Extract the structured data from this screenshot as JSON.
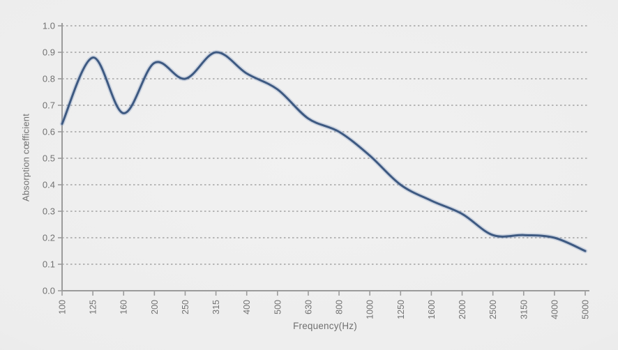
{
  "figure": {
    "background_center": "#f1f1f1",
    "background_edge": "#d4d4d4"
  },
  "chart_data": {
    "type": "line",
    "title": "",
    "xlabel": "Frequency(Hz)",
    "ylabel": "Absorption cœfficient",
    "x_scale": "categorical-third-octave-bands",
    "categories": [
      "100",
      "125",
      "160",
      "200",
      "250",
      "315",
      "400",
      "500",
      "630",
      "800",
      "1000",
      "1250",
      "1600",
      "2000",
      "2500",
      "3150",
      "4000",
      "5000"
    ],
    "series": [
      {
        "name": "absorption-coefficient",
        "values": [
          0.63,
          0.88,
          0.67,
          0.86,
          0.8,
          0.9,
          0.82,
          0.76,
          0.65,
          0.6,
          0.51,
          0.4,
          0.34,
          0.29,
          0.21,
          0.21,
          0.2,
          0.15
        ],
        "color": "#3e5a82",
        "halo_color": "rgba(125,150,190,0.30)",
        "line_width": 3
      }
    ],
    "ylim": [
      0.0,
      1.0
    ],
    "yticks": [
      "0.0",
      "0.1",
      "0.2",
      "0.3",
      "0.4",
      "0.5",
      "0.6",
      "0.7",
      "0.8",
      "0.9",
      "1.0"
    ],
    "grid": {
      "horizontal": true,
      "style": "dashed",
      "color": "#9a9a9a"
    },
    "axis_color": "#9b9b9b",
    "tick_label_color": "#717171",
    "x_tick_label_rotation_deg": 90,
    "legend": "none"
  }
}
